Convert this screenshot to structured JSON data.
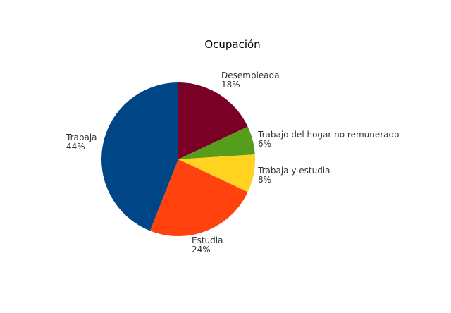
{
  "chart_data": {
    "type": "pie",
    "title": "Ocupación",
    "slices": [
      {
        "label": "Desempleada",
        "percent_label": "18%",
        "value": 18,
        "color": "#7a0026"
      },
      {
        "label": "Trabajo del hogar no remunerado",
        "percent_label": "6%",
        "value": 6,
        "color": "#579d1c"
      },
      {
        "label": "Trabaja y estudia",
        "percent_label": "8%",
        "value": 8,
        "color": "#ffd320"
      },
      {
        "label": "Estudia",
        "percent_label": "24%",
        "value": 24,
        "color": "#ff420e"
      },
      {
        "label": "Trabaja",
        "percent_label": "44%",
        "value": 44,
        "color": "#004586"
      }
    ],
    "start_angle_deg": 0,
    "direction": "clockwise"
  }
}
